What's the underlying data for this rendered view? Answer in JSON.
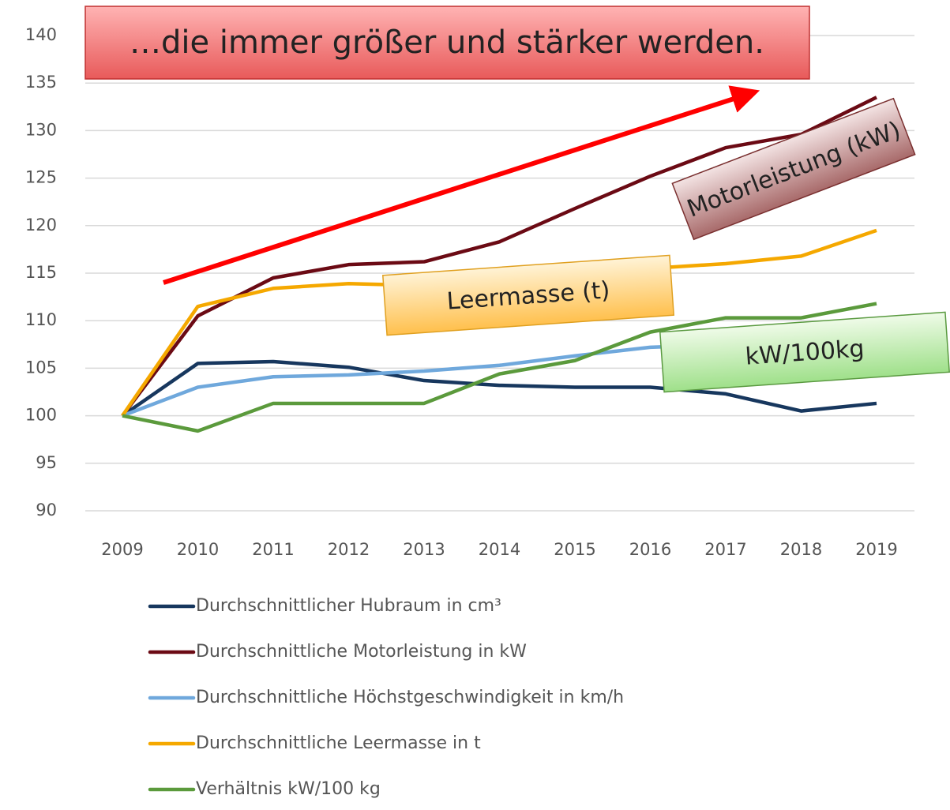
{
  "chart_data": {
    "type": "line",
    "title": "…die immer größer und stärker werden.",
    "annotations": [
      "Motorleistung (kW)",
      "Leermasse (t)",
      "kW/100kg"
    ],
    "categories": [
      "2009",
      "2010",
      "2011",
      "2012",
      "2013",
      "2014",
      "2015",
      "2016",
      "2017",
      "2018",
      "2019"
    ],
    "series": [
      {
        "name": "Durchschnittlicher Hubraum in cm³",
        "color": "#17375e",
        "values": [
          100,
          105.5,
          105.7,
          105.1,
          103.7,
          103.2,
          103.0,
          103.0,
          102.3,
          100.5,
          101.3
        ]
      },
      {
        "name": "Durchschnittliche Motorleistung in kW",
        "color": "#6b0a14",
        "values": [
          100,
          110.5,
          114.5,
          115.9,
          116.2,
          118.3,
          121.8,
          125.2,
          128.2,
          129.6,
          133.5
        ]
      },
      {
        "name": "Durchschnittliche Höchstgeschwindigkeit in km/h",
        "color": "#6fa8dc",
        "values": [
          100,
          103.0,
          104.1,
          104.3,
          104.7,
          105.3,
          106.3,
          107.2,
          107.5,
          107.8,
          108.2
        ]
      },
      {
        "name": "Durchschnittliche Leermasse in t",
        "color": "#f5a800",
        "values": [
          100,
          111.5,
          113.4,
          113.9,
          113.7,
          114.2,
          114.6,
          115.5,
          116.0,
          116.8,
          119.5
        ]
      },
      {
        "name": "Verhältnis kW/100 kg",
        "color": "#5b9a3c",
        "values": [
          100,
          98.4,
          101.3,
          101.3,
          101.3,
          104.4,
          105.8,
          108.8,
          110.3,
          110.3,
          111.8
        ]
      }
    ],
    "ylim": [
      90,
      140
    ],
    "yticks": [
      90,
      95,
      100,
      105,
      110,
      115,
      120,
      125,
      130,
      135,
      140
    ],
    "grid": true
  }
}
